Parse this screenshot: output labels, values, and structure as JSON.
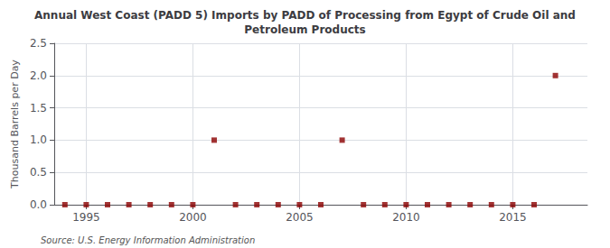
{
  "chart_data": {
    "type": "scatter",
    "title": "Annual West Coast (PADD 5) Imports by PADD of Processing from Egypt of Crude Oil and\nPetroleum Products",
    "ylabel": "Thousand Barrels per Day",
    "annotations": [
      "Source: U.S. Energy Information Administration"
    ],
    "x": [
      1994,
      1995,
      1996,
      1997,
      1998,
      1999,
      2000,
      2001,
      2002,
      2003,
      2004,
      2005,
      2006,
      2007,
      2008,
      2009,
      2010,
      2011,
      2012,
      2013,
      2014,
      2015,
      2016,
      2017
    ],
    "values": [
      0,
      0,
      0,
      0,
      0,
      0,
      0,
      1,
      0,
      0,
      0,
      0,
      0,
      1,
      0,
      0,
      0,
      0,
      0,
      0,
      0,
      0,
      0,
      2
    ],
    "color": "#8b0000",
    "marker": "square",
    "xlim": [
      1993.5,
      2018.5
    ],
    "xticks": [
      1995,
      2000,
      2005,
      2010,
      2015
    ],
    "ylim": [
      0,
      2.5
    ],
    "yticks": [
      {
        "value": 0,
        "label": "0.0"
      },
      0.5,
      {
        "value": 1,
        "label": "1.0"
      },
      1.5,
      {
        "value": 2,
        "label": "2.0"
      },
      2.5
    ],
    "grid": true
  }
}
